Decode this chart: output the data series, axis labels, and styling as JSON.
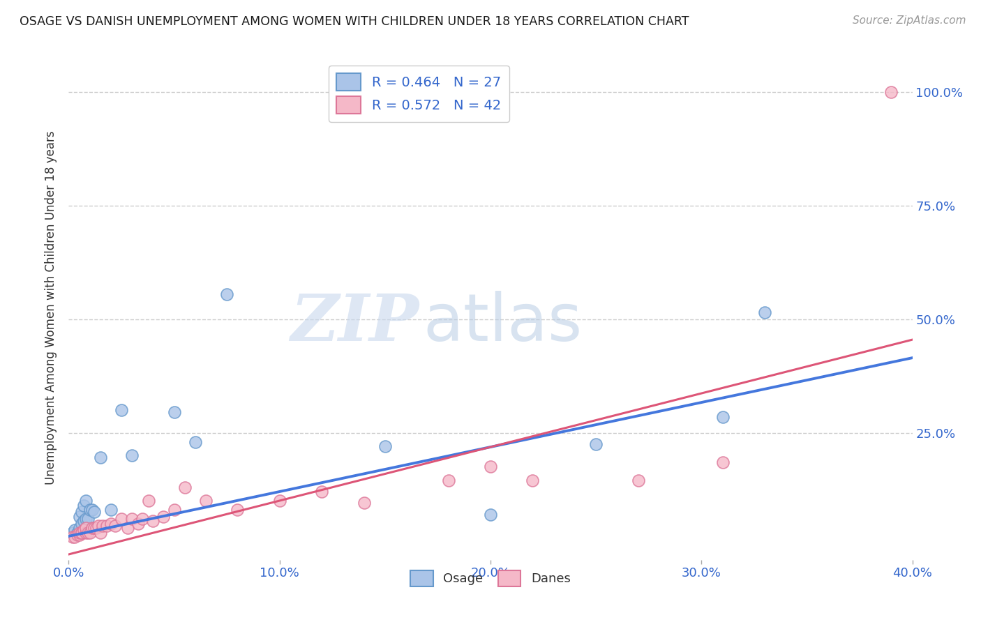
{
  "title": "OSAGE VS DANISH UNEMPLOYMENT AMONG WOMEN WITH CHILDREN UNDER 18 YEARS CORRELATION CHART",
  "source": "Source: ZipAtlas.com",
  "ylabel": "Unemployment Among Women with Children Under 18 years",
  "xlim": [
    0.0,
    0.4
  ],
  "ylim": [
    -0.03,
    1.08
  ],
  "xtick_labels": [
    "0.0%",
    "10.0%",
    "20.0%",
    "30.0%",
    "40.0%"
  ],
  "xtick_values": [
    0.0,
    0.1,
    0.2,
    0.3,
    0.4
  ],
  "ytick_labels_right": [
    "100.0%",
    "75.0%",
    "50.0%",
    "25.0%"
  ],
  "ytick_values_right": [
    1.0,
    0.75,
    0.5,
    0.25
  ],
  "grid_color": "#cccccc",
  "background_color": "#ffffff",
  "watermark_zip": "ZIP",
  "watermark_atlas": "atlas",
  "legend_label1": "R = 0.464   N = 27",
  "legend_label2": "R = 0.572   N = 42",
  "osage_color": "#6699cc",
  "osage_fill": "#aac4e8",
  "danes_color": "#dd7799",
  "danes_fill": "#f5b8c8",
  "line_blue": "#4477dd",
  "line_pink": "#dd5577",
  "osage_x": [
    0.002,
    0.003,
    0.004,
    0.005,
    0.005,
    0.006,
    0.006,
    0.007,
    0.007,
    0.008,
    0.008,
    0.009,
    0.01,
    0.011,
    0.012,
    0.015,
    0.02,
    0.025,
    0.03,
    0.05,
    0.06,
    0.075,
    0.15,
    0.2,
    0.25,
    0.31,
    0.33
  ],
  "osage_y": [
    0.03,
    0.035,
    0.03,
    0.04,
    0.065,
    0.05,
    0.075,
    0.055,
    0.09,
    0.06,
    0.1,
    0.06,
    0.08,
    0.08,
    0.075,
    0.195,
    0.08,
    0.3,
    0.2,
    0.295,
    0.23,
    0.555,
    0.22,
    0.07,
    0.225,
    0.285,
    0.515
  ],
  "danes_x": [
    0.002,
    0.003,
    0.004,
    0.005,
    0.005,
    0.006,
    0.006,
    0.007,
    0.008,
    0.008,
    0.009,
    0.01,
    0.011,
    0.012,
    0.013,
    0.014,
    0.015,
    0.016,
    0.018,
    0.02,
    0.022,
    0.025,
    0.028,
    0.03,
    0.033,
    0.035,
    0.038,
    0.04,
    0.045,
    0.05,
    0.055,
    0.065,
    0.08,
    0.1,
    0.12,
    0.14,
    0.18,
    0.2,
    0.22,
    0.27,
    0.31,
    0.39
  ],
  "danes_y": [
    0.02,
    0.02,
    0.025,
    0.025,
    0.03,
    0.03,
    0.03,
    0.035,
    0.03,
    0.04,
    0.03,
    0.03,
    0.04,
    0.04,
    0.04,
    0.045,
    0.03,
    0.045,
    0.045,
    0.05,
    0.045,
    0.06,
    0.04,
    0.06,
    0.05,
    0.06,
    0.1,
    0.055,
    0.065,
    0.08,
    0.13,
    0.1,
    0.08,
    0.1,
    0.12,
    0.095,
    0.145,
    0.175,
    0.145,
    0.145,
    0.185,
    1.0
  ],
  "blue_line_x": [
    0.0,
    0.4
  ],
  "blue_line_y": [
    0.022,
    0.415
  ],
  "pink_line_x": [
    0.0,
    0.4
  ],
  "pink_line_y": [
    -0.018,
    0.455
  ]
}
